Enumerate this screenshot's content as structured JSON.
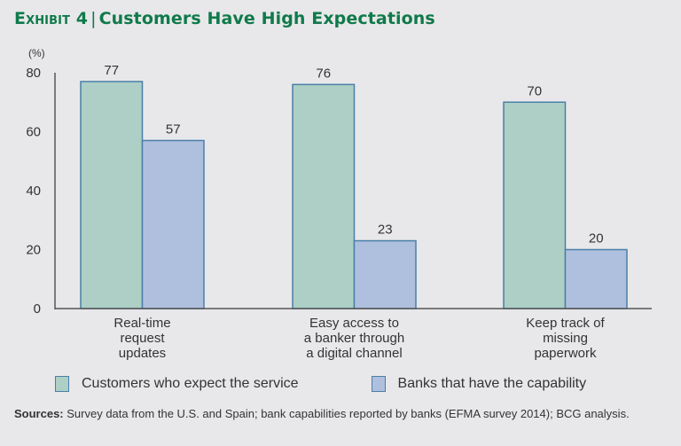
{
  "header": {
    "exhibit": "Exhibit 4",
    "separator": "|",
    "title": "Customers Have High Expectations"
  },
  "chart_data": {
    "type": "bar",
    "title": "Customers Have High Expectations",
    "ylabel": "(%)",
    "xlabel": "",
    "ylim": [
      0,
      80
    ],
    "yticks": [
      0,
      20,
      40,
      60,
      80
    ],
    "grid": false,
    "categories": [
      [
        "Real-time",
        "request",
        "updates"
      ],
      [
        "Easy access to",
        "a banker through",
        "a digital channel"
      ],
      [
        "Keep track of",
        "missing",
        "paperwork"
      ]
    ],
    "series": [
      {
        "name": "Customers who expect the service",
        "color": "#adcfc5",
        "values": [
          77,
          76,
          70
        ]
      },
      {
        "name": "Banks that have the capability",
        "color": "#afc0de",
        "values": [
          57,
          23,
          20
        ]
      }
    ],
    "bar_edge_color": "#4a7fa8",
    "legend_position": "bottom"
  },
  "legend": {
    "items": [
      {
        "label": "Customers who expect the service",
        "color": "#adcfc5"
      },
      {
        "label": "Banks that have the capability",
        "color": "#afc0de"
      }
    ]
  },
  "sources": {
    "label": "Sources:",
    "text": " Survey data from the U.S. and Spain; bank capabilities reported by banks (EFMA survey 2014); BCG analysis."
  }
}
